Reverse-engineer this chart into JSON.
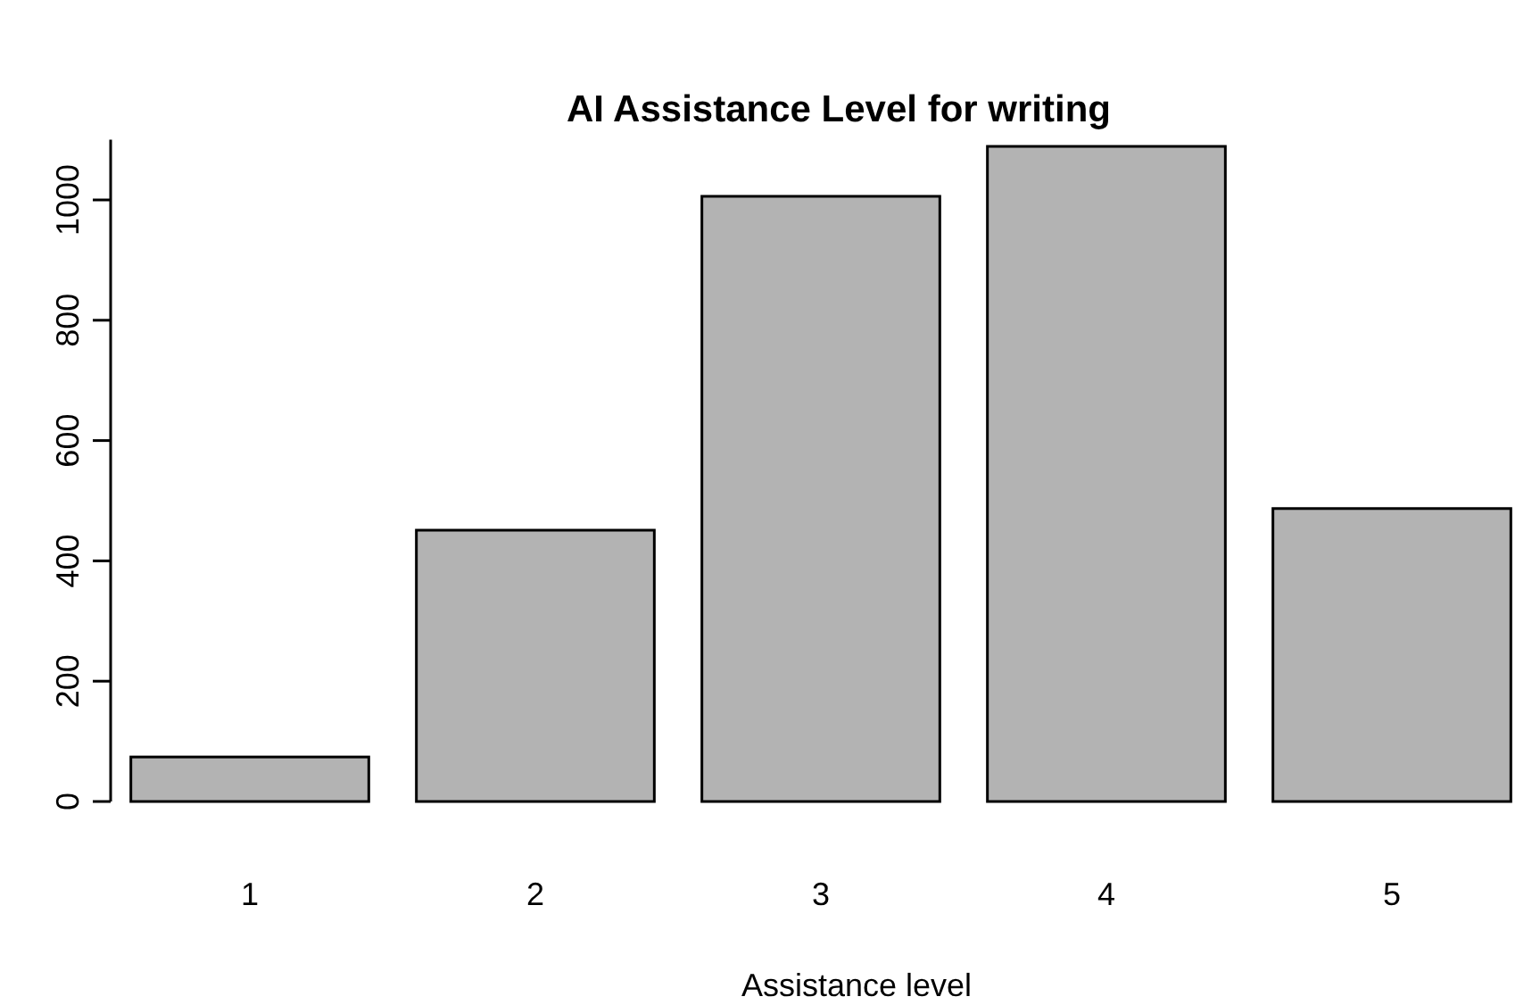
{
  "chart_data": {
    "type": "bar",
    "title": "AI Assistance Level for writing",
    "xlabel": "Assistance level",
    "categories": [
      "1",
      "2",
      "3",
      "4",
      "5"
    ],
    "values": [
      74,
      451,
      1006,
      1089,
      487
    ],
    "color": "#b3b3b3",
    "ylim": [
      0,
      1100
    ],
    "yticks": [
      0,
      200,
      400,
      600,
      800,
      1000
    ],
    "grid": false
  }
}
